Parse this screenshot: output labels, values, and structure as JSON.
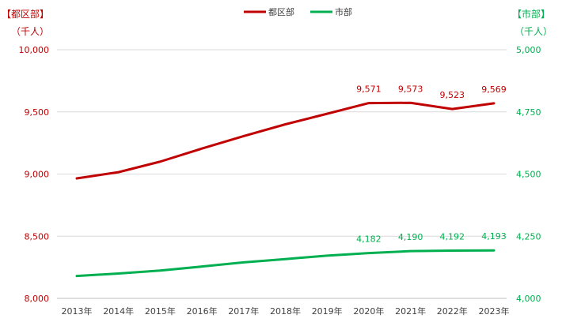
{
  "chart_data": {
    "type": "line",
    "title": "",
    "categories": [
      "2013年",
      "2014年",
      "2015年",
      "2016年",
      "2017年",
      "2018年",
      "2019年",
      "2020年",
      "2021年",
      "2022年",
      "2023年"
    ],
    "left_axis": {
      "label_line1": "【都区部】",
      "label_line2": "（千人）",
      "ylim": [
        8000,
        10000
      ],
      "ticks": [
        "8,000",
        "8,500",
        "9,000",
        "9,500",
        "10,000"
      ],
      "tick_values": [
        8000,
        8500,
        9000,
        9500,
        10000
      ],
      "color": "#c00000"
    },
    "right_axis": {
      "label_line1": "【市部】",
      "label_line2": "（千人）",
      "ylim": [
        4000,
        5000
      ],
      "ticks": [
        "4,000",
        "4,250",
        "4,500",
        "4,750",
        "5,000"
      ],
      "tick_values": [
        4000,
        4250,
        4500,
        4750,
        5000
      ],
      "color": "#00b050"
    },
    "series": [
      {
        "name": "都区部",
        "axis": "left",
        "color": "#c00000",
        "values": [
          8965,
          9015,
          9100,
          9205,
          9305,
          9400,
          9485,
          9571,
          9573,
          9523,
          9569
        ],
        "data_labels": [
          null,
          null,
          null,
          null,
          null,
          null,
          null,
          "9,571",
          "9,573",
          "9,523",
          "9,569"
        ]
      },
      {
        "name": "市部",
        "axis": "right",
        "color": "#00b050",
        "values": [
          4090,
          4100,
          4112,
          4128,
          4145,
          4158,
          4172,
          4182,
          4190,
          4192,
          4193
        ],
        "data_labels": [
          null,
          null,
          null,
          null,
          null,
          null,
          null,
          "4,182",
          "4,190",
          "4,192",
          "4,193"
        ]
      }
    ],
    "grid": true,
    "legend": "top-center"
  }
}
